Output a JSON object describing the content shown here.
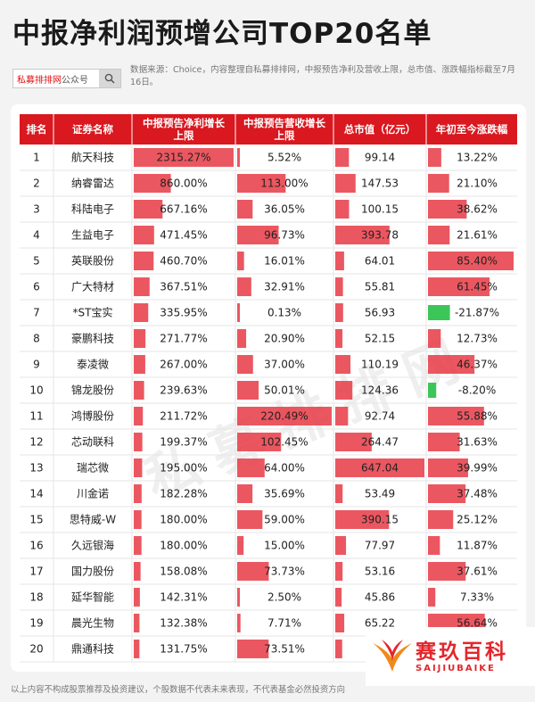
{
  "title": "中报净利润预增公司TOP20名单",
  "search": {
    "brand_red": "私募排排网",
    "brand_gray": "公众号"
  },
  "source_note": "数据来源：Choice，内容整理自私募排排网，中报预告净利及营收上限，总市值、涨跌幅指标截至7月16日。",
  "watermark": "私募排排网",
  "footer": "以上内容不构成股票推荐及投资建议，个股数据不代表未来表现，不代表基金必然投资方向",
  "logo": {
    "cn": "赛玖百科",
    "en": "SAIJIUBAIKE",
    "icon": "fish-tail-logo-icon"
  },
  "colors": {
    "header": "#d9181f",
    "bar": "#e83a44",
    "bar_light": "#fbdcde",
    "negative": "#3cc658"
  },
  "chart_data": {
    "type": "table",
    "columns": [
      "排名",
      "证券名称",
      "中报预告净利增长上限",
      "中报预告营收增长上限",
      "总市值（亿元）",
      "年初至今涨跌幅"
    ],
    "rows": [
      {
        "rank": "1",
        "name": "航天科技",
        "profit": 2315.27,
        "profit_text": "2315.27%",
        "revenue": 5.52,
        "revenue_text": "5.52%",
        "cap": 99.14,
        "cap_text": "99.14",
        "change": 13.22,
        "change_text": "13.22%"
      },
      {
        "rank": "2",
        "name": "纳睿雷达",
        "profit": 860.0,
        "profit_text": "860.00%",
        "revenue": 113.0,
        "revenue_text": "113.00%",
        "cap": 147.53,
        "cap_text": "147.53",
        "change": 21.1,
        "change_text": "21.10%"
      },
      {
        "rank": "3",
        "name": "科陆电子",
        "profit": 667.16,
        "profit_text": "667.16%",
        "revenue": 36.05,
        "revenue_text": "36.05%",
        "cap": 100.15,
        "cap_text": "100.15",
        "change": 38.62,
        "change_text": "38.62%"
      },
      {
        "rank": "4",
        "name": "生益电子",
        "profit": 471.45,
        "profit_text": "471.45%",
        "revenue": 96.73,
        "revenue_text": "96.73%",
        "cap": 393.78,
        "cap_text": "393.78",
        "change": 21.61,
        "change_text": "21.61%"
      },
      {
        "rank": "5",
        "name": "英联股份",
        "profit": 460.7,
        "profit_text": "460.70%",
        "revenue": 16.01,
        "revenue_text": "16.01%",
        "cap": 64.01,
        "cap_text": "64.01",
        "change": 85.4,
        "change_text": "85.40%"
      },
      {
        "rank": "6",
        "name": "广大特材",
        "profit": 367.51,
        "profit_text": "367.51%",
        "revenue": 32.91,
        "revenue_text": "32.91%",
        "cap": 55.81,
        "cap_text": "55.81",
        "change": 61.45,
        "change_text": "61.45%"
      },
      {
        "rank": "7",
        "name": "*ST宝实",
        "profit": 335.95,
        "profit_text": "335.95%",
        "revenue": 0.13,
        "revenue_text": "0.13%",
        "cap": 56.93,
        "cap_text": "56.93",
        "change": -21.87,
        "change_text": "-21.87%"
      },
      {
        "rank": "8",
        "name": "豪鹏科技",
        "profit": 271.77,
        "profit_text": "271.77%",
        "revenue": 20.9,
        "revenue_text": "20.90%",
        "cap": 52.15,
        "cap_text": "52.15",
        "change": 12.73,
        "change_text": "12.73%"
      },
      {
        "rank": "9",
        "name": "泰凌微",
        "profit": 267.0,
        "profit_text": "267.00%",
        "revenue": 37.0,
        "revenue_text": "37.00%",
        "cap": 110.19,
        "cap_text": "110.19",
        "change": 46.37,
        "change_text": "46.37%"
      },
      {
        "rank": "10",
        "name": "锦龙股份",
        "profit": 239.63,
        "profit_text": "239.63%",
        "revenue": 50.01,
        "revenue_text": "50.01%",
        "cap": 124.36,
        "cap_text": "124.36",
        "change": -8.2,
        "change_text": "-8.20%"
      },
      {
        "rank": "11",
        "name": "鸿博股份",
        "profit": 211.72,
        "profit_text": "211.72%",
        "revenue": 220.49,
        "revenue_text": "220.49%",
        "cap": 92.74,
        "cap_text": "92.74",
        "change": 55.88,
        "change_text": "55.88%"
      },
      {
        "rank": "12",
        "name": "芯动联科",
        "profit": 199.37,
        "profit_text": "199.37%",
        "revenue": 102.45,
        "revenue_text": "102.45%",
        "cap": 264.47,
        "cap_text": "264.47",
        "change": 31.63,
        "change_text": "31.63%"
      },
      {
        "rank": "13",
        "name": "瑞芯微",
        "profit": 195.0,
        "profit_text": "195.00%",
        "revenue": 64.0,
        "revenue_text": "64.00%",
        "cap": 647.04,
        "cap_text": "647.04",
        "change": 39.99,
        "change_text": "39.99%"
      },
      {
        "rank": "14",
        "name": "川金诺",
        "profit": 182.28,
        "profit_text": "182.28%",
        "revenue": 35.69,
        "revenue_text": "35.69%",
        "cap": 53.49,
        "cap_text": "53.49",
        "change": 37.48,
        "change_text": "37.48%"
      },
      {
        "rank": "15",
        "name": "思特威-W",
        "profit": 180.0,
        "profit_text": "180.00%",
        "revenue": 59.0,
        "revenue_text": "59.00%",
        "cap": 390.15,
        "cap_text": "390.15",
        "change": 25.12,
        "change_text": "25.12%"
      },
      {
        "rank": "16",
        "name": "久远银海",
        "profit": 180.0,
        "profit_text": "180.00%",
        "revenue": 15.0,
        "revenue_text": "15.00%",
        "cap": 77.97,
        "cap_text": "77.97",
        "change": 11.87,
        "change_text": "11.87%"
      },
      {
        "rank": "17",
        "name": "国力股份",
        "profit": 158.08,
        "profit_text": "158.08%",
        "revenue": 73.73,
        "revenue_text": "73.73%",
        "cap": 53.16,
        "cap_text": "53.16",
        "change": 37.61,
        "change_text": "37.61%"
      },
      {
        "rank": "18",
        "name": "延华智能",
        "profit": 142.31,
        "profit_text": "142.31%",
        "revenue": 2.5,
        "revenue_text": "2.50%",
        "cap": 45.86,
        "cap_text": "45.86",
        "change": 7.33,
        "change_text": "7.33%"
      },
      {
        "rank": "19",
        "name": "晨光生物",
        "profit": 132.38,
        "profit_text": "132.38%",
        "revenue": 7.71,
        "revenue_text": "7.71%",
        "cap": 65.22,
        "cap_text": "65.22",
        "change": 56.64,
        "change_text": "56.64%"
      },
      {
        "rank": "20",
        "name": "鼎通科技",
        "profit": 131.75,
        "profit_text": "131.75%",
        "revenue": 73.51,
        "revenue_text": "73.51%",
        "cap": 50.18,
        "cap_text": "",
        "change": 43.0,
        "change_text": ""
      }
    ]
  }
}
